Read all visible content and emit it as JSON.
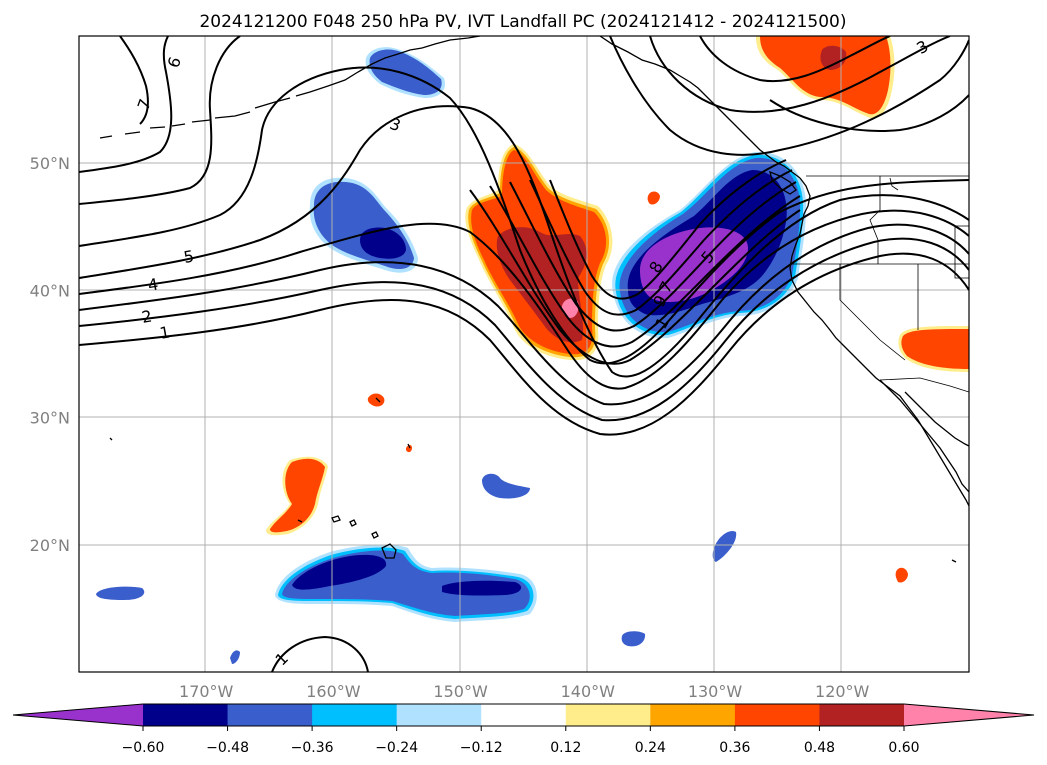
{
  "title": "2024121200 F048 250 hPa PV, IVT Landfall PC (2024121412 - 2024121500)",
  "x_ticks": [
    {
      "label": "170°W",
      "lon": -170
    },
    {
      "label": "160°W",
      "lon": -160
    },
    {
      "label": "150°W",
      "lon": -150
    },
    {
      "label": "140°W",
      "lon": -140
    },
    {
      "label": "130°W",
      "lon": -130
    },
    {
      "label": "120°W",
      "lon": -120
    }
  ],
  "y_ticks": [
    {
      "label": "50°N",
      "lat": 50
    },
    {
      "label": "40°N",
      "lat": 40
    },
    {
      "label": "30°N",
      "lat": 30
    },
    {
      "label": "20°N",
      "lat": 20
    }
  ],
  "colorbar": {
    "ticks": [
      "−0.60",
      "−0.48",
      "−0.36",
      "−0.24",
      "−0.12",
      "0.12",
      "0.24",
      "0.36",
      "0.48",
      "0.60"
    ],
    "colors": [
      "#9932cc",
      "#00008b",
      "#3a5fcd",
      "#00bfff",
      "#b0e2ff",
      "#ffffff",
      "#ffec8b",
      "#ffa500",
      "#ff4500",
      "#b22222",
      "#ff82ab"
    ]
  },
  "contour_labels": [
    "6",
    "7",
    "3",
    "5",
    "4",
    "2",
    "1",
    "8",
    "7",
    "5",
    "9",
    "1",
    "3",
    "1"
  ],
  "colors": {
    "purple": "#9932cc",
    "navy": "#00008b",
    "royal_blue": "#3a5fcd",
    "deep_sky": "#00bfff",
    "light_sky": "#b0e2ff",
    "khaki": "#ffec8b",
    "orange": "#ffa500",
    "orange_red": "#ff4500",
    "firebrick": "#b22222",
    "pink": "#ff82ab"
  }
}
